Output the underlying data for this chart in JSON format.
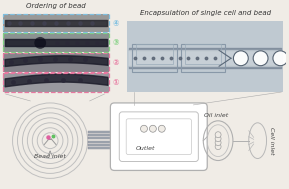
{
  "bg_color": "#f0ece6",
  "fig_width": 2.89,
  "fig_height": 1.89,
  "dpi": 100,
  "spiral_color": "#c0c0c0",
  "channel_color": "#b0b8c0",
  "label_ordering": "Ordering of bead",
  "label_encap": "Encapsulation of single cell and bead",
  "label_bead_inlet": "Bead inlet",
  "label_outlet": "Outlet",
  "label_oil_inlet": "Oil inlet",
  "label_cell_inlet": "Cell inlet",
  "box1_color": "#e878a0",
  "box2_color": "#e878a0",
  "box3_color": "#80d080",
  "box4_color": "#80c0e0",
  "num_labels": [
    "①",
    "②",
    "③",
    "④"
  ],
  "label_fontsize": 4.5,
  "connector_color": "#aaaaaa",
  "gray_line": "#b0b8c0",
  "dark_gray": "#787878"
}
